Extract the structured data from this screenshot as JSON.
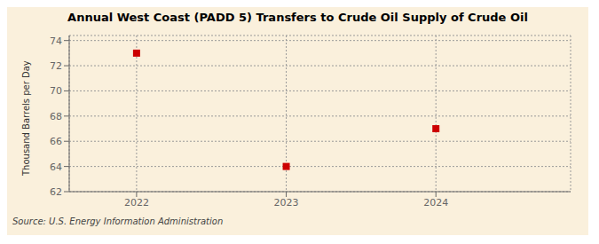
{
  "chart_data": {
    "type": "scatter",
    "title": "Annual West Coast (PADD 5) Transfers to Crude Oil Supply of Crude Oil",
    "ylabel": "Thousand Barrels per Day",
    "annotations": [
      "Source: U.S. Energy Information Administration"
    ],
    "x": [
      2022,
      2023,
      2024
    ],
    "values": [
      73.0,
      64.0,
      67.0
    ],
    "color": "#cc0000",
    "marker": "square",
    "xlim": [
      2021.55,
      2024.9
    ],
    "xticks": [
      2022,
      2023,
      2024
    ],
    "ylim": [
      62,
      74.4
    ],
    "yticks": [
      62,
      64,
      66,
      68,
      70,
      72,
      74
    ],
    "grid": true
  }
}
